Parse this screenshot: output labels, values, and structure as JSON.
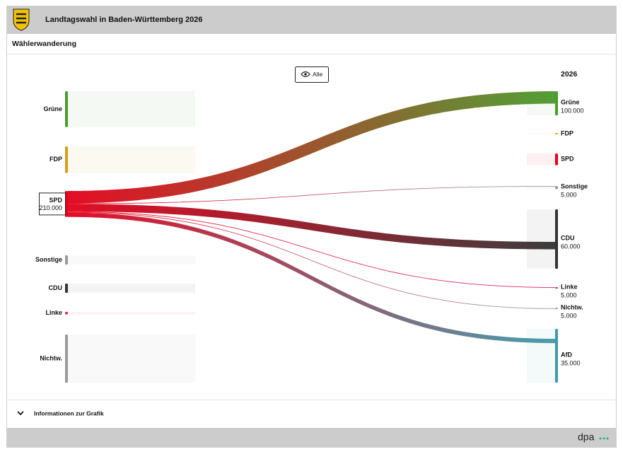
{
  "header": {
    "title": "Landtagswahl in Baden-Württemberg 2026"
  },
  "subtitle": "Wählerwanderung",
  "filter_button": "Alle",
  "chart_data": {
    "type": "sankey",
    "target_title": "2026",
    "selected_source": 2,
    "sources": [
      {
        "name": "Grüne",
        "color": "#4a9a2c",
        "value": 290000
      },
      {
        "name": "FDP",
        "color": "#d4a017",
        "value": 215000
      },
      {
        "name": "SPD",
        "color": "#e2001a",
        "value": 210000,
        "value_label": "210.000"
      },
      {
        "name": "Sonstige",
        "color": "#9a9a9a",
        "value": 75000
      },
      {
        "name": "CDU",
        "color": "#333333",
        "value": 75000
      },
      {
        "name": "Linke",
        "color": "#d6215c",
        "value": 20000
      },
      {
        "name": "Nichtw.",
        "color": "#9a9a9a",
        "value": 390000
      }
    ],
    "targets": [
      {
        "name": "Grüne",
        "color": "#4a9a2c",
        "value": 195000
      },
      {
        "name": "FDP",
        "color": "#d4a017",
        "value": 10000
      },
      {
        "name": "SPD",
        "color": "#e2001a",
        "value": 95000
      },
      {
        "name": "Sonstige",
        "color": "#9a9a9a",
        "value": 25000
      },
      {
        "name": "CDU",
        "color": "#333333",
        "value": 480000
      },
      {
        "name": "Linke",
        "color": "#d6215c",
        "value": 10000
      },
      {
        "name": "Nichtw.",
        "color": "#9a9a9a",
        "value": 10000
      },
      {
        "name": "AfD",
        "color": "#3f9aa8",
        "value": 435000
      }
    ],
    "flows": [
      {
        "source": 2,
        "target": 0,
        "value": 100000,
        "value_label": "100.000"
      },
      {
        "source": 2,
        "target": 3,
        "value": 5000,
        "value_label": "5.000"
      },
      {
        "source": 2,
        "target": 4,
        "value": 60000,
        "value_label": "60.000"
      },
      {
        "source": 2,
        "target": 5,
        "value": 5000,
        "value_label": "5.000"
      },
      {
        "source": 2,
        "target": 6,
        "value": 5000,
        "value_label": "5.000"
      },
      {
        "source": 2,
        "target": 7,
        "value": 35000,
        "value_label": "35.000"
      }
    ]
  },
  "footer": {
    "info": "Informationen zur Grafik",
    "brand": "dpa"
  }
}
